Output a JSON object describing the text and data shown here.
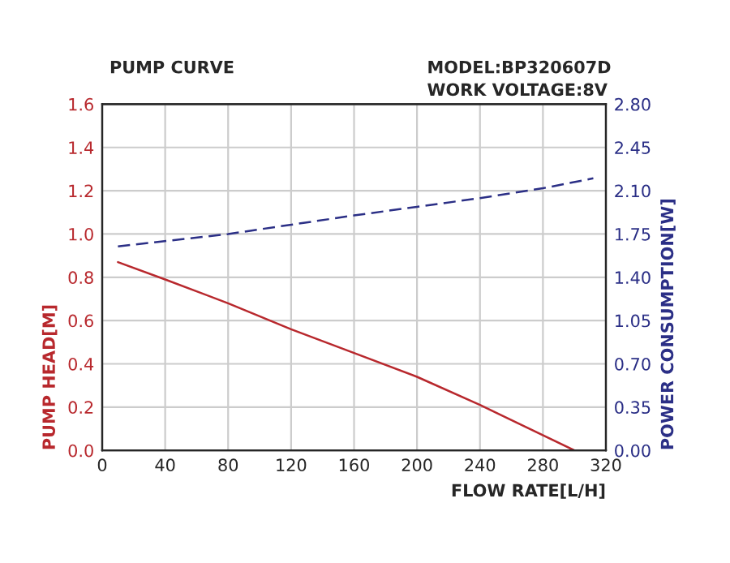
{
  "chart_data": {
    "type": "line",
    "title": "PUMP CURVE",
    "annotations": [
      "MODEL:BP320607D",
      "WORK VOLTAGE:8V"
    ],
    "xlabel": "FLOW RATE[L/H]",
    "ylabel": "PUMP HEAD[M]",
    "y2label": "POWER CONSUMPTION[W]",
    "series": [
      {
        "color": "#b8282d",
        "line_style": "solid",
        "x": [
          10,
          40,
          80,
          120,
          160,
          200,
          240,
          300
        ],
        "values": [
          0.87,
          0.79,
          0.68,
          0.56,
          0.45,
          0.34,
          0.21,
          0.0
        ]
      },
      {
        "color": "#2b2f86",
        "line_style": "dashed",
        "axis": "y2",
        "x": [
          10,
          80,
          160,
          200,
          240,
          280,
          312
        ],
        "values": [
          1.65,
          1.75,
          1.9,
          1.97,
          2.04,
          2.12,
          2.2
        ]
      }
    ],
    "xlim": [
      0,
      320
    ],
    "xticks": [
      0,
      40,
      80,
      120,
      160,
      200,
      240,
      280,
      320
    ],
    "ylim": [
      0,
      1.6
    ],
    "yticks": [
      {
        "value": 0,
        "label": "0.0"
      },
      0.2,
      0.4,
      0.6,
      0.8,
      {
        "value": 1,
        "label": "1.0"
      },
      1.2,
      1.4,
      1.6
    ],
    "y2lim": [
      0,
      2.8
    ],
    "y2ticks": [
      {
        "value": 0,
        "label": "0.00"
      },
      0.35,
      {
        "value": 0.7,
        "label": "0.70"
      },
      1.05,
      {
        "value": 1.4,
        "label": "1.40"
      },
      1.75,
      {
        "value": 2.1,
        "label": "2.10"
      },
      2.45,
      {
        "value": 2.8,
        "label": "2.80"
      }
    ],
    "grid": true,
    "legend": false
  }
}
